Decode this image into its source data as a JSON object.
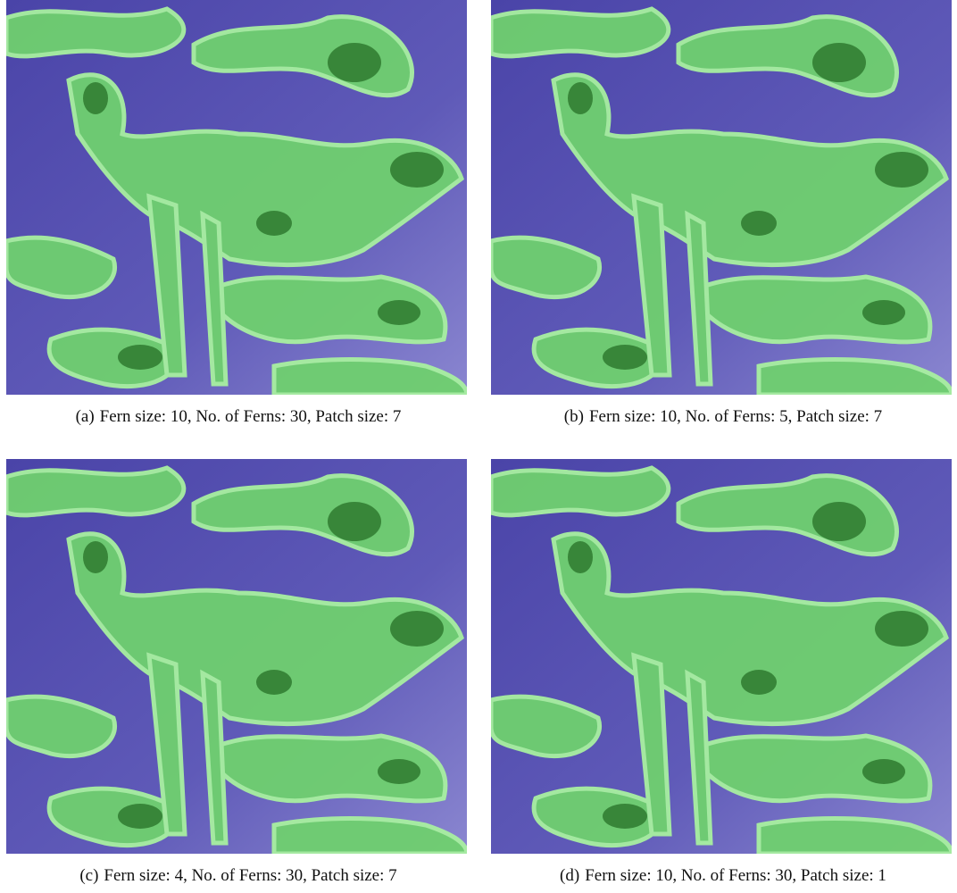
{
  "figure": {
    "panels": [
      {
        "label": "(a)",
        "caption": "Fern size: 10, No. of Ferns: 30, Patch size: 7"
      },
      {
        "label": "(b)",
        "caption": "Fern size: 10, No. of Ferns: 5, Patch size: 7"
      },
      {
        "label": "(c)",
        "caption": "Fern size: 4, No. of Ferns: 30, Patch size: 7"
      },
      {
        "label": "(d)",
        "caption": "Fern size: 10, No. of Ferns: 30, Patch size: 1"
      }
    ]
  }
}
